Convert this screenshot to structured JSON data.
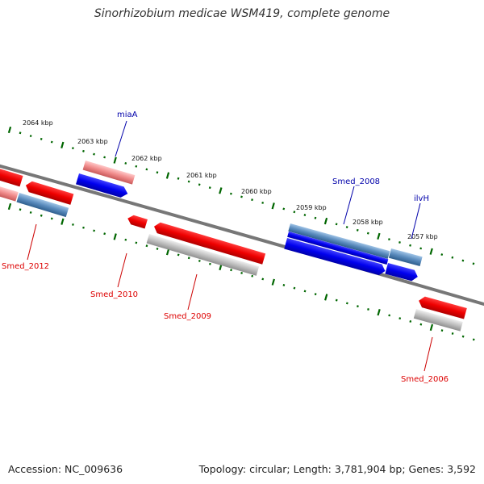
{
  "title": "Sinorhizobium medicae WSM419, complete genome",
  "footer": {
    "accession": "Accession: NC_009636",
    "topology": "Topology: circular; Length: 3,781,904 bp; Genes: 3,592"
  },
  "scale": {
    "tick_labels": [
      "2064 kbp",
      "2063 kbp",
      "2062 kbp",
      "2061 kbp",
      "2060 kbp",
      "2059 kbp",
      "2058 kbp",
      "2057 kbp"
    ]
  },
  "genes": [
    {
      "name": "Smed_2012",
      "strand": "minus",
      "color": "#dd0000"
    },
    {
      "name": "miaA",
      "strand": "plus",
      "color": "#0000aa"
    },
    {
      "name": "Smed_2010",
      "strand": "minus",
      "color": "#dd0000"
    },
    {
      "name": "Smed_2009",
      "strand": "minus",
      "color": "#dd0000"
    },
    {
      "name": "Smed_2008",
      "strand": "plus",
      "color": "#0000aa"
    },
    {
      "name": "ilvH",
      "strand": "plus",
      "color": "#0000aa"
    },
    {
      "name": "Smed_2006",
      "strand": "minus",
      "color": "#dd0000"
    }
  ],
  "colors": {
    "forward_cds": "#0000ee",
    "reverse_cds": "#ee0000",
    "forward_label": "#0000aa",
    "reverse_label": "#dd0000",
    "backbone": "#707070",
    "tick": "#006600"
  }
}
